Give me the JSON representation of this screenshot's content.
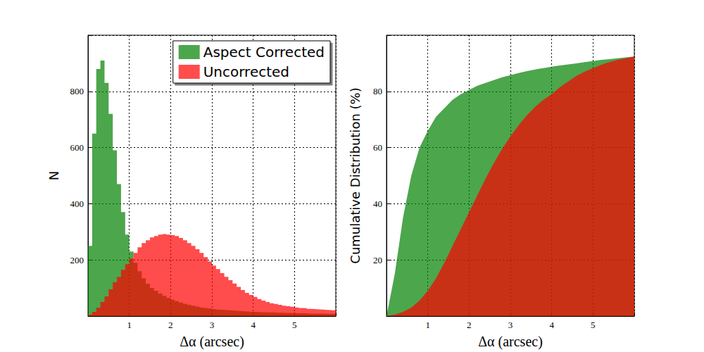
{
  "chart_data": [
    {
      "type": "histogram",
      "xlabel": "Δα (arcsec)",
      "ylabel": "N",
      "xlim": [
        0,
        6
      ],
      "ylim": [
        0,
        1000
      ],
      "xticks": [
        1,
        2,
        3,
        4,
        5
      ],
      "yticks": [
        200,
        400,
        600,
        800
      ],
      "grid": true,
      "legend": "upper right",
      "bins": [
        0,
        0.1,
        0.2,
        0.3,
        0.4,
        0.5,
        0.6,
        0.7,
        0.8,
        0.9,
        1.0,
        1.1,
        1.2,
        1.3,
        1.4,
        1.5,
        1.6,
        1.7,
        1.8,
        1.9,
        2.0,
        2.1,
        2.2,
        2.3,
        2.4,
        2.5,
        2.6,
        2.7,
        2.8,
        2.9,
        3.0,
        3.1,
        3.2,
        3.3,
        3.4,
        3.5,
        3.6,
        3.7,
        3.8,
        3.9,
        4.0,
        4.1,
        4.2,
        4.3,
        4.4,
        4.5,
        4.6,
        4.7,
        4.8,
        4.9,
        5.0,
        5.1,
        5.2,
        5.3,
        5.4,
        5.5,
        5.6,
        5.7,
        5.8,
        5.9,
        6.0
      ],
      "series": [
        {
          "name": "Aspect Corrected",
          "color": "#008000",
          "values": [
            250,
            650,
            880,
            910,
            830,
            720,
            590,
            470,
            370,
            290,
            230,
            190,
            160,
            135,
            115,
            100,
            90,
            80,
            72,
            65,
            58,
            53,
            48,
            44,
            40,
            37,
            34,
            31,
            29,
            27,
            25,
            23,
            22,
            21,
            20,
            19,
            18,
            17,
            16,
            15,
            15,
            14,
            14,
            13,
            13,
            12,
            12,
            11,
            11,
            11,
            10,
            10,
            10,
            9,
            9,
            9,
            9,
            8,
            8,
            8
          ]
        },
        {
          "name": "Uncorrected",
          "color": "#ff0000",
          "values": [
            5,
            15,
            30,
            50,
            70,
            95,
            120,
            140,
            165,
            185,
            205,
            225,
            245,
            260,
            270,
            280,
            285,
            290,
            292,
            290,
            288,
            285,
            278,
            270,
            260,
            250,
            238,
            225,
            210,
            195,
            180,
            167,
            153,
            140,
            128,
            116,
            104,
            93,
            83,
            75,
            68,
            61,
            55,
            50,
            46,
            43,
            40,
            37,
            35,
            33,
            31,
            29,
            28,
            26,
            25,
            24,
            23,
            22,
            21,
            20
          ]
        }
      ]
    },
    {
      "type": "area",
      "xlabel": "Δα (arcsec)",
      "ylabel": "Cumulative Distribution (%)",
      "xlim": [
        0,
        6
      ],
      "ylim": [
        0,
        100
      ],
      "xticks": [
        1,
        2,
        3,
        4,
        5
      ],
      "yticks": [
        20,
        40,
        60,
        80
      ],
      "grid": true,
      "x": [
        0,
        0.2,
        0.4,
        0.6,
        0.8,
        1.0,
        1.2,
        1.4,
        1.6,
        1.8,
        2.0,
        2.2,
        2.4,
        2.6,
        2.8,
        3.0,
        3.2,
        3.4,
        3.6,
        3.8,
        4.0,
        4.2,
        4.4,
        4.6,
        4.8,
        5.0,
        5.2,
        5.4,
        5.6,
        5.8,
        6.0
      ],
      "series": [
        {
          "name": "Aspect Corrected",
          "color": "#008000",
          "values": [
            0,
            15,
            35,
            50,
            60,
            66,
            71,
            74,
            77,
            79,
            80.5,
            82,
            83,
            84,
            85,
            85.8,
            86.5,
            87.2,
            87.8,
            88.3,
            88.8,
            89.2,
            89.6,
            90,
            90.4,
            90.8,
            91.2,
            91.5,
            91.8,
            92.1,
            92.4
          ]
        },
        {
          "name": "Uncorrected",
          "color": "#ff0000",
          "values": [
            0,
            0.5,
            1.5,
            3,
            5.5,
            9,
            13.5,
            19,
            25,
            31,
            37,
            43,
            49,
            54.5,
            59.5,
            64,
            68,
            71.5,
            74.5,
            77,
            79,
            81.5,
            83.5,
            85.5,
            87,
            88.3,
            89.5,
            90.5,
            91.2,
            91.8,
            92.4
          ]
        }
      ]
    }
  ]
}
